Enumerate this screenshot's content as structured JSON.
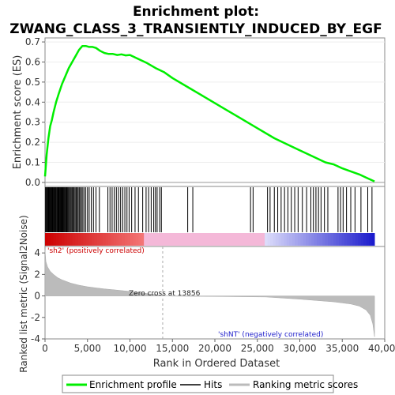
{
  "chart_data": {
    "type": "line",
    "title_line1": "Enrichment plot:",
    "title_line2": "ZWANG_CLASS_3_TRANSIENTLY_INDUCED_BY_EGF",
    "es_panel": {
      "ylabel": "Enrichment score (ES)",
      "ylim": [
        -0.02,
        0.72
      ],
      "yticks": [
        "0.0",
        "0.1",
        "0.2",
        "0.3",
        "0.4",
        "0.5",
        "0.6",
        "0.7"
      ],
      "ytick_values": [
        0.0,
        0.1,
        0.2,
        0.3,
        0.4,
        0.5,
        0.6,
        0.7
      ],
      "series": [
        {
          "name": "Enrichment profile",
          "color": "#00ee00",
          "x": [
            0,
            200,
            400,
            600,
            800,
            1000,
            1300,
            1600,
            2000,
            2400,
            2800,
            3200,
            3600,
            4000,
            4400,
            4800,
            5200,
            5600,
            6000,
            6500,
            7000,
            7500,
            8000,
            8500,
            9000,
            9500,
            10000,
            11000,
            12000,
            13000,
            14000,
            15000,
            17000,
            19000,
            21000,
            23000,
            25000,
            27000,
            29000,
            31000,
            32000,
            33000,
            34000,
            35000,
            36000,
            37000,
            38000,
            38800
          ],
          "y": [
            0.03,
            0.14,
            0.22,
            0.28,
            0.31,
            0.35,
            0.4,
            0.44,
            0.49,
            0.53,
            0.57,
            0.6,
            0.63,
            0.66,
            0.68,
            0.68,
            0.675,
            0.675,
            0.67,
            0.655,
            0.645,
            0.64,
            0.64,
            0.635,
            0.638,
            0.633,
            0.635,
            0.615,
            0.595,
            0.57,
            0.55,
            0.52,
            0.47,
            0.42,
            0.37,
            0.32,
            0.27,
            0.22,
            0.18,
            0.14,
            0.12,
            0.1,
            0.09,
            0.07,
            0.055,
            0.04,
            0.02,
            0.005
          ]
        }
      ]
    },
    "hits_x": [
      60,
      130,
      220,
      300,
      380,
      450,
      520,
      600,
      680,
      760,
      840,
      920,
      1000,
      1080,
      1160,
      1250,
      1330,
      1420,
      1500,
      1580,
      1660,
      1740,
      1820,
      1910,
      2000,
      2090,
      2180,
      2270,
      2360,
      2460,
      2560,
      2660,
      2760,
      2860,
      2970,
      3080,
      3190,
      3300,
      3420,
      3540,
      3660,
      3780,
      3900,
      4030,
      4160,
      4300,
      4450,
      4600,
      4800,
      5000,
      5200,
      5450,
      5700,
      6000,
      6400,
      7400,
      7650,
      7900,
      8150,
      8400,
      8650,
      8900,
      9150,
      9400,
      9650,
      9900,
      10200,
      10600,
      11000,
      11500,
      11900,
      12200,
      12500,
      12800,
      13000,
      13200,
      13500,
      13700,
      16800,
      17400,
      24200,
      24500,
      26200,
      26500,
      27000,
      27400,
      27800,
      28200,
      28600,
      29000,
      29400,
      29800,
      30300,
      30800,
      31300,
      31600,
      31900,
      32200,
      32500,
      32900,
      33300,
      34500,
      34800,
      35100,
      35500,
      36000,
      36500,
      37200,
      38000,
      38500
    ],
    "metric_panel": {
      "ylabel": "Ranked list metric (Signal2Noise)",
      "ylim": [
        -4,
        4.6
      ],
      "yticks": [
        "4",
        "2",
        "0",
        "-2",
        "-4"
      ],
      "ytick_values": [
        4,
        2,
        0,
        -2,
        -4
      ],
      "metric_x": [
        0,
        100,
        300,
        600,
        1000,
        1500,
        2000,
        3000,
        4000,
        5000,
        6000,
        7000,
        8000,
        9000,
        10000,
        11000,
        12000,
        13000,
        13856,
        15000,
        20000,
        26000,
        30000,
        34000,
        36000,
        37000,
        37800,
        38300,
        38600,
        38800
      ],
      "metric_y": [
        4.3,
        3.2,
        2.7,
        2.3,
        2.0,
        1.7,
        1.5,
        1.2,
        1.0,
        0.85,
        0.75,
        0.65,
        0.58,
        0.5,
        0.42,
        0.32,
        0.22,
        0.12,
        0.0,
        -0.02,
        -0.05,
        -0.1,
        -0.3,
        -0.55,
        -0.75,
        -0.95,
        -1.3,
        -1.8,
        -2.6,
        -3.8
      ],
      "zero_cross_label": "Zero cross at 13856",
      "zero_cross": 13856,
      "pos_label": "'sh2' (positively correlated)",
      "neg_label": "'shNT' (negatively correlated)"
    },
    "xlabel": "Rank in Ordered Dataset",
    "xlim": [
      0,
      40000
    ],
    "xticks": [
      "0",
      "5,000",
      "10,000",
      "15,000",
      "20,000",
      "25,000",
      "30,000",
      "35,000",
      "40,000"
    ],
    "xtick_values": [
      0,
      5000,
      10000,
      15000,
      20000,
      25000,
      30000,
      35000,
      40000
    ],
    "n_genes": 38800,
    "legend": {
      "placement": "bottom",
      "items": [
        {
          "label": "Enrichment profile",
          "color": "#00ee00"
        },
        {
          "label": "Hits",
          "color": "#000000"
        },
        {
          "label": "Ranking metric scores",
          "color": "#bbbbbb"
        }
      ]
    },
    "colors": {
      "es_line": "#00ee00",
      "hit": "#000000",
      "metric_fill": "#bbbbbb",
      "pos_band": "#cc0000",
      "mid_band": "#f4b8d8",
      "neg_band": "#1a1acc"
    }
  }
}
